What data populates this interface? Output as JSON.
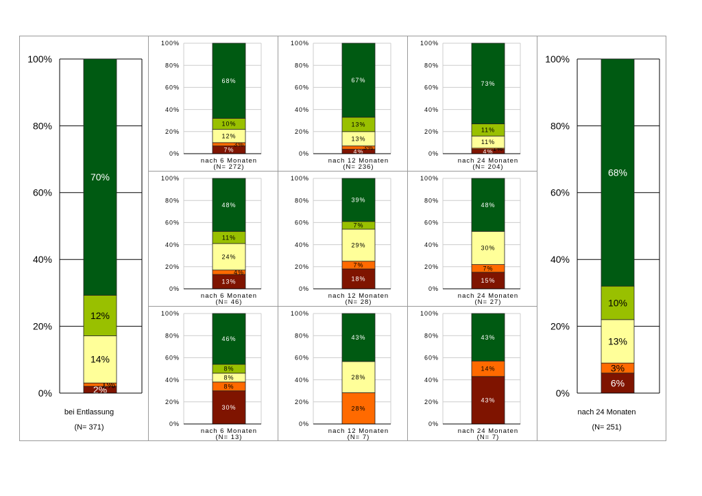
{
  "colors": {
    "severe": "#7f1400",
    "orange": "#ff6a00",
    "yellow": "#ffff99",
    "lightgreen": "#99c000",
    "darkgreen": "#005a12"
  },
  "chart_data": [
    {
      "type": "bar",
      "stacked": true,
      "panel": "left",
      "category": "bei Entlassung",
      "n": "(N= 371)",
      "ylim": [
        0,
        100
      ],
      "yticks": [
        "0%",
        "20%",
        "40%",
        "60%",
        "80%",
        "100%"
      ],
      "values": [
        2,
        1,
        14,
        12,
        70
      ],
      "labels": [
        "2%",
        "1%",
        "14%",
        "12%",
        "70%"
      ]
    },
    {
      "type": "bar",
      "stacked": true,
      "panel": "r1c1",
      "category": "nach 6 Monaten",
      "n": "(N= 272)",
      "ylim": [
        0,
        100
      ],
      "yticks": [
        "0%",
        "20%",
        "40%",
        "60%",
        "80%",
        "100%"
      ],
      "values": [
        7,
        3,
        12,
        10,
        68
      ],
      "labels": [
        "7%",
        "3%",
        "12%",
        "10%",
        "68%"
      ]
    },
    {
      "type": "bar",
      "stacked": true,
      "panel": "r1c2",
      "category": "nach 12 Monaten",
      "n": "(N= 236)",
      "ylim": [
        0,
        100
      ],
      "yticks": [
        "0%",
        "20%",
        "40%",
        "60%",
        "80%",
        "100%"
      ],
      "values": [
        4,
        3,
        13,
        13,
        67
      ],
      "labels": [
        "4%",
        "3%",
        "13%",
        "13%",
        "67%"
      ]
    },
    {
      "type": "bar",
      "stacked": true,
      "panel": "r1c3",
      "category": "nach 24 Monaten",
      "n": "(N= 204)",
      "ylim": [
        0,
        100
      ],
      "yticks": [
        "0%",
        "20%",
        "40%",
        "60%",
        "80%",
        "100%"
      ],
      "values": [
        4,
        1,
        11,
        11,
        73
      ],
      "labels": [
        "4%",
        "1%",
        "11%",
        "11%",
        "73%"
      ]
    },
    {
      "type": "bar",
      "stacked": true,
      "panel": "r2c1",
      "category": "nach 6 Monaten",
      "n": "(N= 46)",
      "ylim": [
        0,
        100
      ],
      "yticks": [
        "0%",
        "20%",
        "40%",
        "60%",
        "80%",
        "100%"
      ],
      "values": [
        13,
        4,
        24,
        11,
        48
      ],
      "labels": [
        "13%",
        "4%",
        "24%",
        "11%",
        "48%"
      ]
    },
    {
      "type": "bar",
      "stacked": true,
      "panel": "r2c2",
      "category": "nach 12 Monaten",
      "n": "(N= 28)",
      "ylim": [
        0,
        100
      ],
      "yticks": [
        "0%",
        "20%",
        "40%",
        "60%",
        "80%",
        "100%"
      ],
      "values": [
        18,
        7,
        29,
        7,
        39
      ],
      "labels": [
        "18%",
        "7%",
        "29%",
        "7%",
        "39%"
      ]
    },
    {
      "type": "bar",
      "stacked": true,
      "panel": "r2c3",
      "category": "nach 24 Monaten",
      "n": "(N= 27)",
      "ylim": [
        0,
        100
      ],
      "yticks": [
        "0%",
        "20%",
        "40%",
        "60%",
        "80%",
        "100%"
      ],
      "values": [
        15,
        7,
        30,
        0,
        48
      ],
      "labels": [
        "15%",
        "7%",
        "30%",
        "",
        "48%"
      ]
    },
    {
      "type": "bar",
      "stacked": true,
      "panel": "r3c1",
      "category": "nach 6 Monaten",
      "n": "(N= 13)",
      "ylim": [
        0,
        100
      ],
      "yticks": [
        "0%",
        "20%",
        "40%",
        "60%",
        "80%",
        "100%"
      ],
      "values": [
        30,
        8,
        8,
        8,
        46
      ],
      "labels": [
        "30%",
        "8%",
        "8%",
        "8%",
        "46%"
      ]
    },
    {
      "type": "bar",
      "stacked": true,
      "panel": "r3c2",
      "category": "nach 12 Monaten",
      "n": "(N= 7)",
      "ylim": [
        0,
        100
      ],
      "yticks": [
        "0%",
        "20%",
        "40%",
        "60%",
        "80%",
        "100%"
      ],
      "values": [
        0,
        28,
        28,
        0,
        43
      ],
      "labels": [
        "",
        "28%",
        "28%",
        "",
        "43%"
      ]
    },
    {
      "type": "bar",
      "stacked": true,
      "panel": "r3c3",
      "category": "nach 24 Monaten",
      "n": "(N= 7)",
      "ylim": [
        0,
        100
      ],
      "yticks": [
        "0%",
        "20%",
        "40%",
        "60%",
        "80%",
        "100%"
      ],
      "values": [
        43,
        14,
        0,
        0,
        43
      ],
      "labels": [
        "43%",
        "14%",
        "",
        "",
        "43%"
      ]
    },
    {
      "type": "bar",
      "stacked": true,
      "panel": "right",
      "category": "nach 24 Monaten",
      "n": "(N= 251)",
      "ylim": [
        0,
        100
      ],
      "yticks": [
        "0%",
        "20%",
        "40%",
        "60%",
        "80%",
        "100%"
      ],
      "values": [
        6,
        3,
        13,
        10,
        68
      ],
      "labels": [
        "6%",
        "3%",
        "13%",
        "10%",
        "68%"
      ]
    }
  ]
}
